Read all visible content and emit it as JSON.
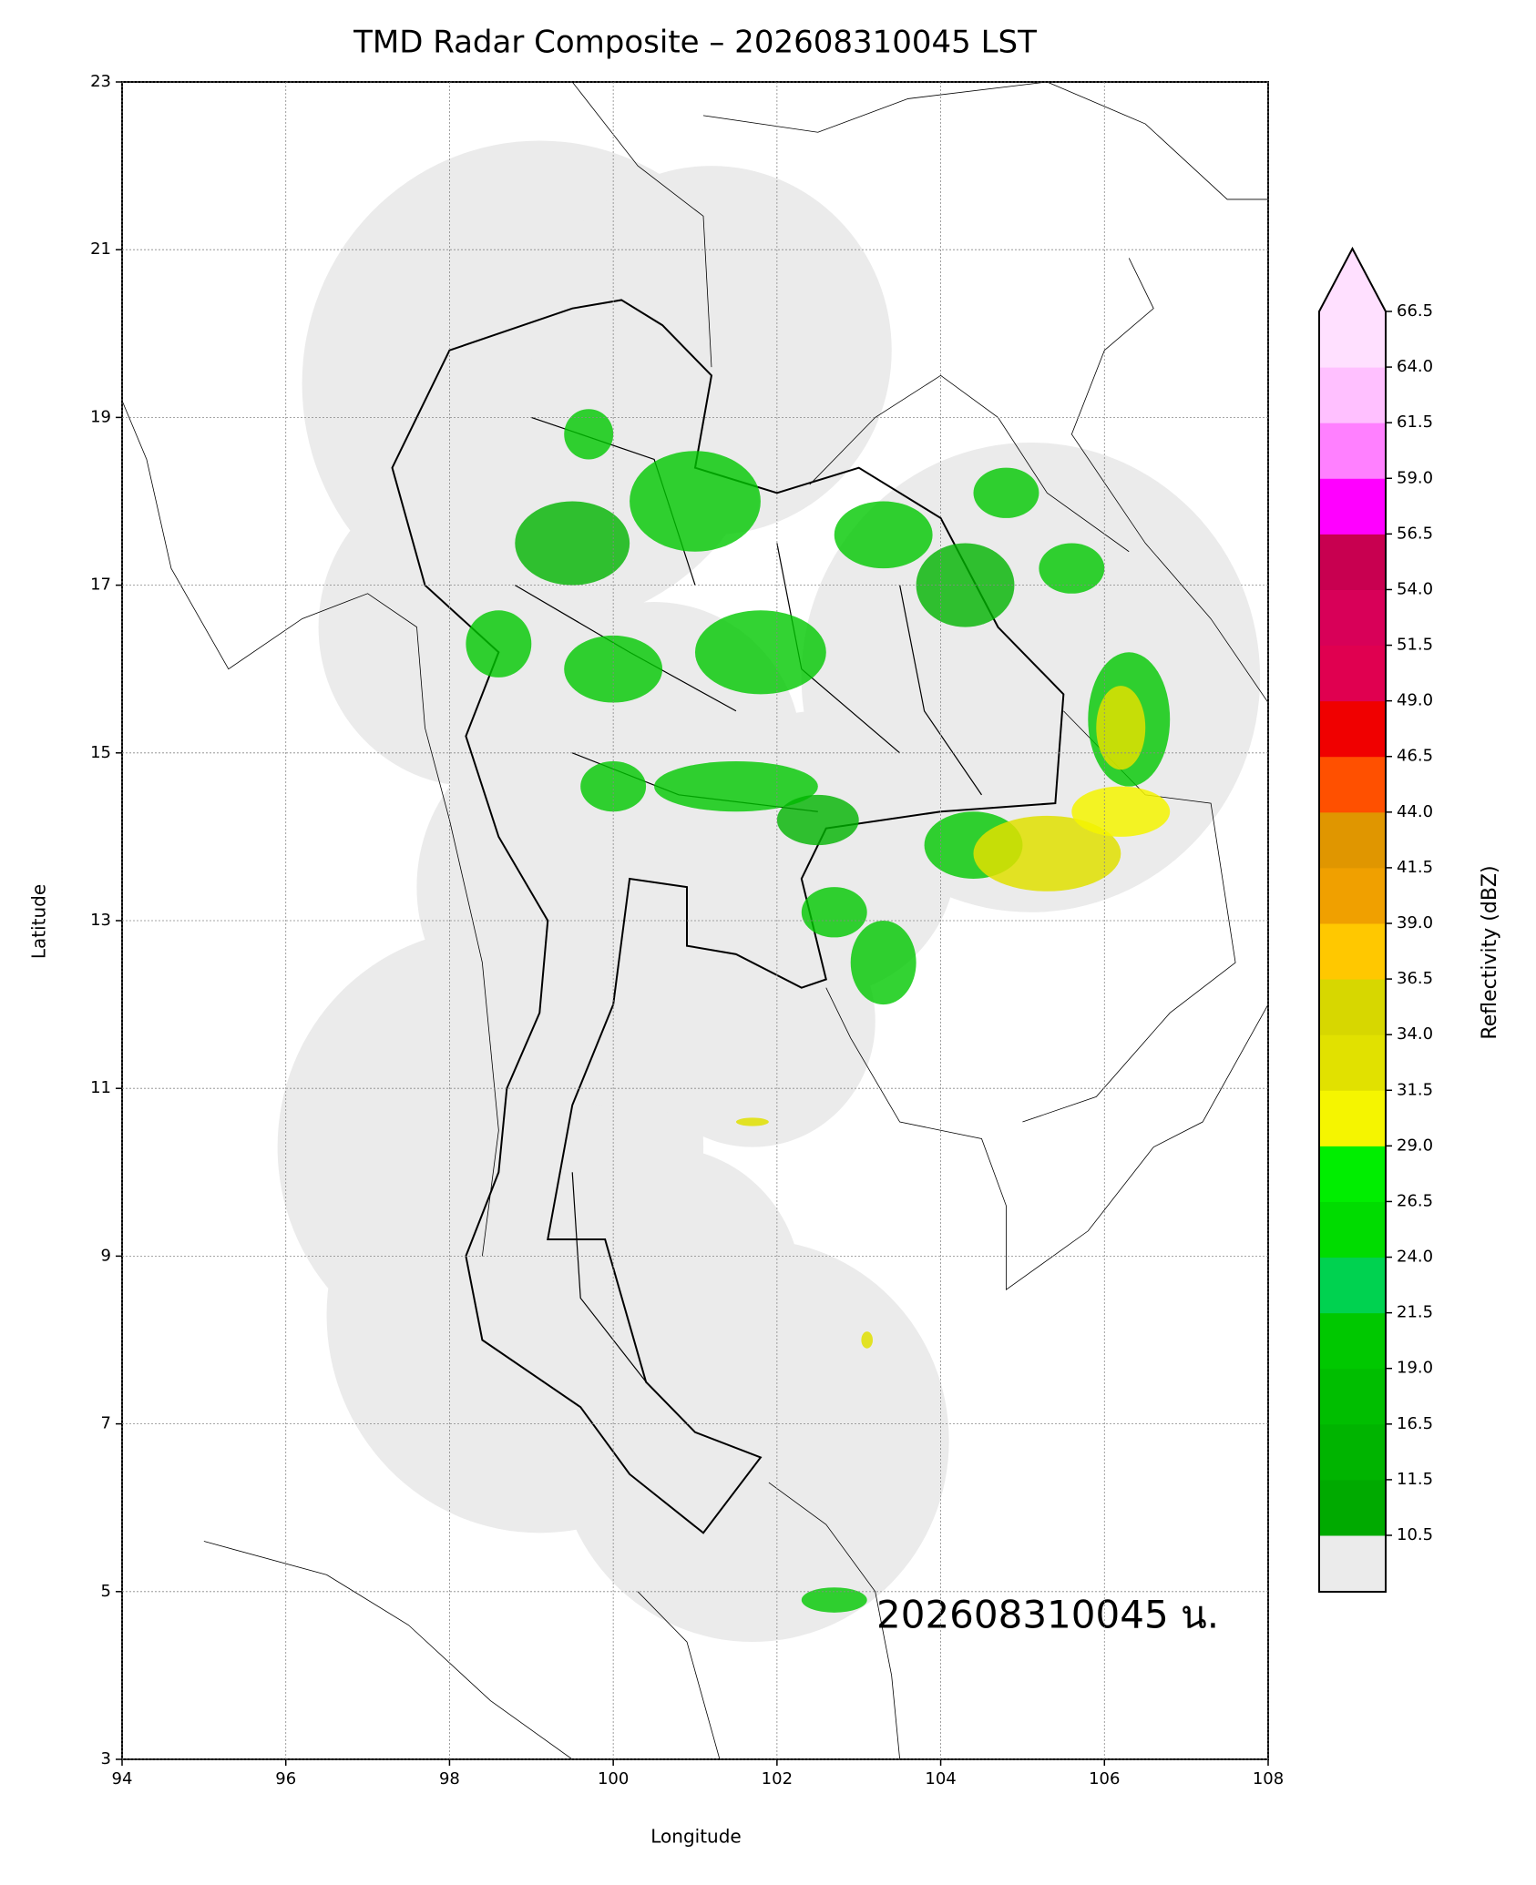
{
  "title": "TMD Radar Composite – 202608310045 LST",
  "x_axis": {
    "label": "Longitude",
    "lim": [
      94,
      108
    ],
    "ticks": [
      94,
      96,
      98,
      100,
      102,
      104,
      106,
      108
    ]
  },
  "y_axis": {
    "label": "Latitude",
    "lim": [
      3,
      23
    ],
    "ticks": [
      3,
      5,
      7,
      9,
      11,
      13,
      15,
      17,
      19,
      21,
      23
    ]
  },
  "grid": true,
  "colorbar": {
    "label": "Reflectivity (dBZ)",
    "ticks": [
      10.5,
      11.5,
      16.5,
      {
        "value": 19,
        "label": "19.0"
      },
      21.5,
      {
        "value": 24,
        "label": "24.0"
      },
      26.5,
      {
        "value": 29,
        "label": "29.0"
      },
      31.5,
      {
        "value": 34,
        "label": "34.0"
      },
      36.5,
      {
        "value": 39,
        "label": "39.0"
      },
      41.5,
      {
        "value": 44,
        "label": "44.0"
      },
      46.5,
      {
        "value": 49,
        "label": "49.0"
      },
      51.5,
      {
        "value": 54,
        "label": "54.0"
      },
      56.5,
      {
        "value": 59,
        "label": "59.0"
      },
      61.5,
      {
        "value": 64,
        "label": "64.0"
      },
      66.5
    ],
    "colors": [
      "#00aa00",
      "#00b400",
      "#00be00",
      "#00c800",
      "#00d250",
      "#00dc00",
      "#00ee00",
      "#f5f500",
      "#e1e100",
      "#d7d700",
      "#ffc800",
      "#f0a000",
      "#e09600",
      "#ff5000",
      "#f00000",
      "#e00050",
      "#d80058",
      "#c80050",
      "#ff00ff",
      "#ff80ff",
      "#ffc0ff",
      "#ffe0ff"
    ],
    "under_color": "#ebebeb",
    "over_color": "#ffe0ff"
  },
  "annotation": "202608310045 น."
}
